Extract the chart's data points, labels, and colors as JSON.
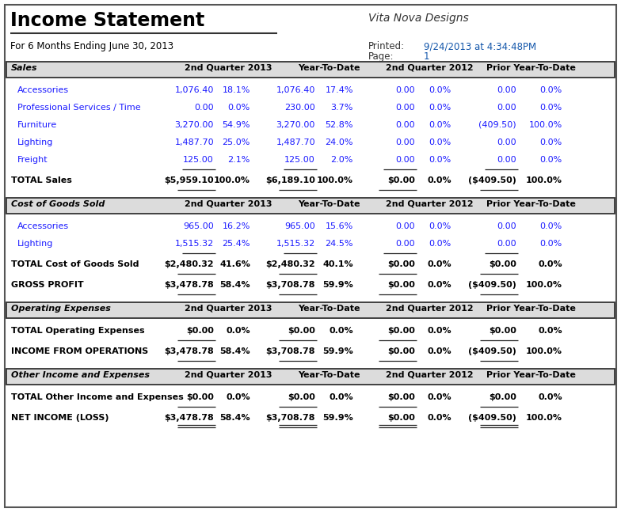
{
  "title": "Income Statement",
  "company": "Vita Nova Designs",
  "subtitle": "For 6 Months Ending June 30, 2013",
  "printed_label": "Printed:",
  "printed_value": "9/24/2013 at 4:34:48PM",
  "page_label": "Page:",
  "page_value": "1",
  "col_headers": [
    "2nd Quarter 2013",
    "Year-To-Date",
    "2nd Quarter 2012",
    "Prior Year-To-Date"
  ],
  "section_bg": "#dcdcdc",
  "section_border": "#333333",
  "blue_color": "#1a1aff",
  "black_color": "#000000",
  "fig_w": 7.84,
  "fig_h": 6.47,
  "dpi": 100,
  "outer_border_color": "#555555",
  "sections": [
    {
      "name": "Sales",
      "italic": true,
      "rows": [
        {
          "label": "Accessories",
          "vals": [
            "1,076.40",
            "18.1%",
            "1,076.40",
            "17.4%",
            "0.00",
            "0.0%",
            "0.00",
            "0.0%"
          ],
          "underline": false
        },
        {
          "label": "Professional Services / Time",
          "vals": [
            "0.00",
            "0.0%",
            "230.00",
            "3.7%",
            "0.00",
            "0.0%",
            "0.00",
            "0.0%"
          ],
          "underline": false
        },
        {
          "label": "Furniture",
          "vals": [
            "3,270.00",
            "54.9%",
            "3,270.00",
            "52.8%",
            "0.00",
            "0.0%",
            "(409.50)",
            "100.0%"
          ],
          "underline": false
        },
        {
          "label": "Lighting",
          "vals": [
            "1,487.70",
            "25.0%",
            "1,487.70",
            "24.0%",
            "0.00",
            "0.0%",
            "0.00",
            "0.0%"
          ],
          "underline": false
        },
        {
          "label": "Freight",
          "vals": [
            "125.00",
            "2.1%",
            "125.00",
            "2.0%",
            "0.00",
            "0.0%",
            "0.00",
            "0.0%"
          ],
          "underline": true
        }
      ],
      "totals": [
        {
          "label": "TOTAL Sales",
          "vals": [
            "$5,959.10",
            "100.0%",
            "$6,189.10",
            "100.0%",
            "$0.00",
            "0.0%",
            "($409.50)",
            "100.0%"
          ],
          "bold": true,
          "underline": true,
          "double": false
        }
      ],
      "subtotals": []
    },
    {
      "name": "Cost of Goods Sold",
      "italic": true,
      "rows": [
        {
          "label": "Accessories",
          "vals": [
            "965.00",
            "16.2%",
            "965.00",
            "15.6%",
            "0.00",
            "0.0%",
            "0.00",
            "0.0%"
          ],
          "underline": false
        },
        {
          "label": "Lighting",
          "vals": [
            "1,515.32",
            "25.4%",
            "1,515.32",
            "24.5%",
            "0.00",
            "0.0%",
            "0.00",
            "0.0%"
          ],
          "underline": true
        }
      ],
      "totals": [
        {
          "label": "TOTAL Cost of Goods Sold",
          "vals": [
            "$2,480.32",
            "41.6%",
            "$2,480.32",
            "40.1%",
            "$0.00",
            "0.0%",
            "$0.00",
            "0.0%"
          ],
          "bold": true,
          "underline": true,
          "double": false
        }
      ],
      "subtotals": [
        {
          "label": "GROSS PROFIT",
          "vals": [
            "$3,478.78",
            "58.4%",
            "$3,708.78",
            "59.9%",
            "$0.00",
            "0.0%",
            "($409.50)",
            "100.0%"
          ],
          "bold": true,
          "underline": true,
          "double": false
        }
      ]
    },
    {
      "name": "Operating Expenses",
      "italic": true,
      "rows": [],
      "totals": [
        {
          "label": "TOTAL Operating Expenses",
          "vals": [
            "$0.00",
            "0.0%",
            "$0.00",
            "0.0%",
            "$0.00",
            "0.0%",
            "$0.00",
            "0.0%"
          ],
          "bold": true,
          "underline": true,
          "double": false
        }
      ],
      "subtotals": [
        {
          "label": "INCOME FROM OPERATIONS",
          "vals": [
            "$3,478.78",
            "58.4%",
            "$3,708.78",
            "59.9%",
            "$0.00",
            "0.0%",
            "($409.50)",
            "100.0%"
          ],
          "bold": true,
          "underline": true,
          "double": false
        }
      ]
    },
    {
      "name": "Other Income and Expenses",
      "italic": true,
      "rows": [],
      "totals": [
        {
          "label": "TOTAL Other Income and Expenses",
          "vals": [
            "$0.00",
            "0.0%",
            "$0.00",
            "0.0%",
            "$0.00",
            "0.0%",
            "$0.00",
            "0.0%"
          ],
          "bold": true,
          "underline": true,
          "double": false
        }
      ],
      "subtotals": [
        {
          "label": "NET INCOME (LOSS)",
          "vals": [
            "$3,478.78",
            "58.4%",
            "$3,708.78",
            "59.9%",
            "$0.00",
            "0.0%",
            "($409.50)",
            "100.0%"
          ],
          "bold": true,
          "underline": false,
          "double": true
        }
      ]
    }
  ]
}
